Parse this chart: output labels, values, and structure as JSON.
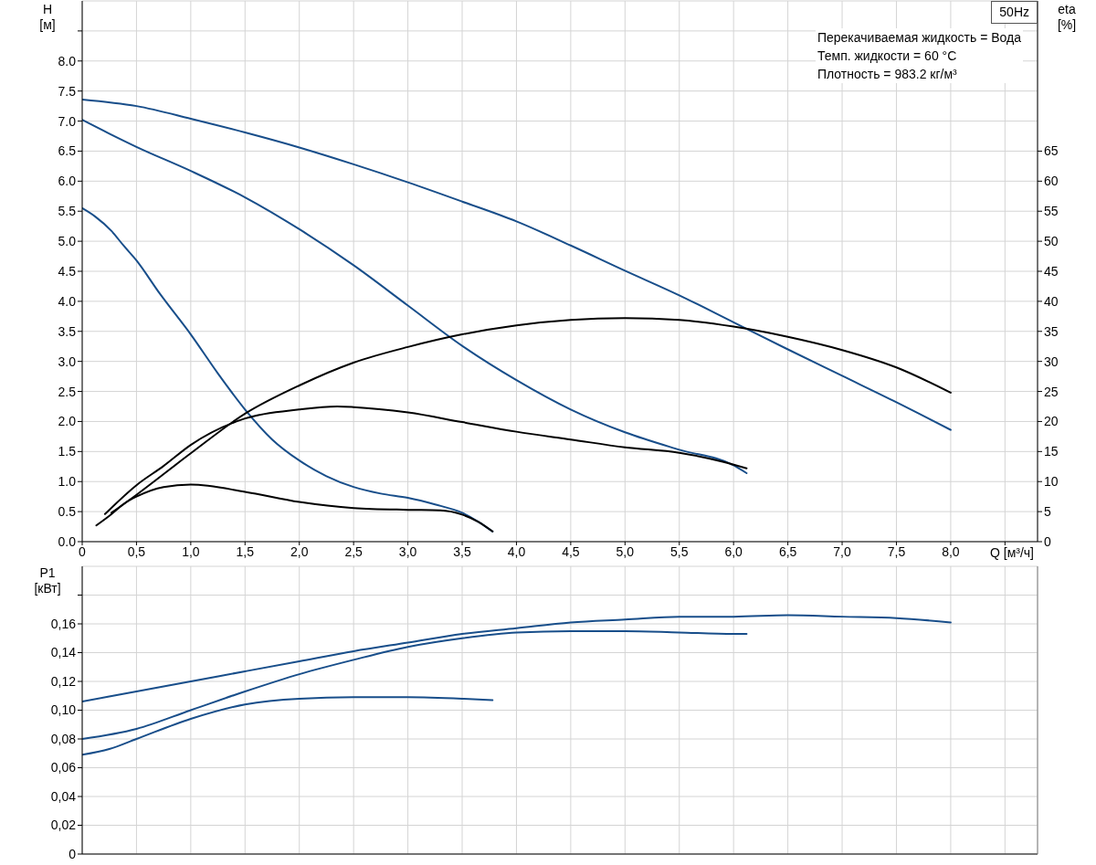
{
  "chart_data": [
    {
      "type": "line",
      "xlabel": "Q [м³/ч]",
      "ylabel": "H\n[м]",
      "y2label": "eta\n[%]",
      "annotations": [
        "50Hz",
        "Перекачиваемая жидкость = Вода",
        "Темп. жидкости = 60 °C",
        "Плотность = 983.2 кг/м³"
      ],
      "xlim": [
        0,
        8.8
      ],
      "xticks": [
        0,
        {
          "value": 0.5,
          "label": "0,5"
        },
        {
          "value": 1,
          "label": "1,0"
        },
        {
          "value": 1.5,
          "label": "1,5"
        },
        {
          "value": 2,
          "label": "2,0"
        },
        {
          "value": 2.5,
          "label": "2,5"
        },
        {
          "value": 3,
          "label": "3,0"
        },
        {
          "value": 3.5,
          "label": "3,5"
        },
        {
          "value": 4,
          "label": "4,0"
        },
        {
          "value": 4.5,
          "label": "4,5"
        },
        {
          "value": 5,
          "label": "5,0"
        },
        {
          "value": 5.5,
          "label": "5,5"
        },
        {
          "value": 6,
          "label": "6,0"
        },
        {
          "value": 6.5,
          "label": "6,5"
        },
        {
          "value": 7,
          "label": "7,0"
        },
        {
          "value": 7.5,
          "label": "7,5"
        },
        {
          "value": 8,
          "label": "8,0"
        },
        {
          "value": 8.5,
          "label": null
        }
      ],
      "ylim": [
        0,
        9
      ],
      "yticks": [
        {
          "value": 0,
          "label": "0.0"
        },
        {
          "value": 0.5,
          "label": "0.5"
        },
        {
          "value": 1,
          "label": "1.0"
        },
        {
          "value": 1.5,
          "label": "1.5"
        },
        {
          "value": 2,
          "label": "2.0"
        },
        {
          "value": 2.5,
          "label": "2.5"
        },
        {
          "value": 3,
          "label": "3.0"
        },
        {
          "value": 3.5,
          "label": "3.5"
        },
        {
          "value": 4,
          "label": "4.0"
        },
        {
          "value": 4.5,
          "label": "4.5"
        },
        {
          "value": 5,
          "label": "5.0"
        },
        {
          "value": 5.5,
          "label": "5.5"
        },
        {
          "value": 6,
          "label": "6.0"
        },
        {
          "value": 6.5,
          "label": "6.5"
        },
        {
          "value": 7,
          "label": "7.0"
        },
        {
          "value": 7.5,
          "label": "7.5"
        },
        {
          "value": 8,
          "label": "8.0"
        },
        {
          "value": 8.5,
          "label": null
        }
      ],
      "y2lim": [
        0,
        90
      ],
      "y2ticks": [
        0,
        5,
        10,
        15,
        20,
        25,
        30,
        35,
        40,
        45,
        50,
        55,
        60,
        65
      ],
      "grid": true,
      "marker": "none",
      "series": [
        {
          "color": "#184e8a",
          "x": [
            0,
            0.5,
            1,
            1.5,
            2,
            2.5,
            3,
            3.5,
            4,
            4.5,
            5,
            5.5,
            6,
            6.5,
            7,
            7.5,
            8
          ],
          "values": [
            7.36,
            7.25,
            7.04,
            6.81,
            6.56,
            6.28,
            5.98,
            5.66,
            5.33,
            4.93,
            4.51,
            4.1,
            3.65,
            3.2,
            2.76,
            2.32,
            1.86
          ]
        },
        {
          "color": "#184e8a",
          "x": [
            0,
            0.25,
            0.5,
            1,
            1.5,
            2,
            2.5,
            3,
            3.5,
            4,
            4.5,
            5,
            5.5,
            6,
            6.12
          ],
          "values": [
            7.02,
            6.79,
            6.57,
            6.17,
            5.73,
            5.2,
            4.6,
            3.93,
            3.26,
            2.69,
            2.2,
            1.82,
            1.53,
            1.27,
            1.14
          ]
        },
        {
          "color": "#184e8a",
          "x": [
            0,
            0.12,
            0.27,
            0.38,
            0.5,
            0.71,
            1,
            1.25,
            1.5,
            1.75,
            2,
            2.25,
            2.5,
            2.75,
            3,
            3.25,
            3.5,
            3.65,
            3.78
          ],
          "values": [
            5.55,
            5.41,
            5.17,
            4.93,
            4.68,
            4.14,
            3.45,
            2.8,
            2.2,
            1.7,
            1.35,
            1.09,
            0.91,
            0.8,
            0.73,
            0.62,
            0.48,
            0.33,
            0.17
          ]
        },
        {
          "color": "#000000",
          "axis": "y2",
          "x": [
            0.27,
            0.5,
            1,
            1.5,
            2,
            2.5,
            3,
            3.5,
            4,
            4.5,
            5,
            5.5,
            6,
            6.5,
            7,
            7.5,
            8
          ],
          "values": [
            4.8,
            7.8,
            14.7,
            21.3,
            26.0,
            29.8,
            32.4,
            34.5,
            36.0,
            36.9,
            37.2,
            36.9,
            35.8,
            34.1,
            31.9,
            29.0,
            24.8
          ]
        },
        {
          "color": "#000000",
          "axis": "y2",
          "x": [
            0.21,
            0.5,
            0.75,
            1,
            1.5,
            2,
            2.35,
            2.5,
            3,
            3.5,
            4,
            4.5,
            5,
            5.5,
            5.9,
            6.12
          ],
          "values": [
            4.6,
            9.4,
            12.6,
            16.1,
            20.5,
            22.0,
            22.5,
            22.4,
            21.5,
            19.9,
            18.3,
            17.0,
            15.7,
            14.8,
            13.3,
            12.2
          ]
        },
        {
          "color": "#000000",
          "axis": "y2",
          "x": [
            0.13,
            0.25,
            0.4,
            0.5,
            0.75,
            1,
            1.5,
            2,
            2.5,
            3,
            3.3,
            3.5,
            3.65,
            3.78
          ],
          "values": [
            2.7,
            4.3,
            6.5,
            7.5,
            9.1,
            9.5,
            8.3,
            6.6,
            5.6,
            5.3,
            5.2,
            4.5,
            3.3,
            1.7
          ]
        }
      ]
    },
    {
      "type": "line",
      "ylabel": "P1\n[кВт]",
      "tick_labels": "y",
      "xlim": [
        0,
        8.8
      ],
      "xticks": [
        0,
        0.5,
        1,
        1.5,
        2,
        2.5,
        3,
        3.5,
        4,
        4.5,
        5,
        5.5,
        6,
        6.5,
        7,
        7.5,
        8,
        8.5
      ],
      "ylim": [
        0,
        0.2
      ],
      "yticks": [
        0,
        {
          "value": 0.02,
          "label": "0,02"
        },
        {
          "value": 0.04,
          "label": "0,04"
        },
        {
          "value": 0.06,
          "label": "0,06"
        },
        {
          "value": 0.08,
          "label": "0,08"
        },
        {
          "value": 0.1,
          "label": "0,10"
        },
        {
          "value": 0.12,
          "label": "0,12"
        },
        {
          "value": 0.14,
          "label": "0,14"
        },
        {
          "value": 0.16,
          "label": "0,16"
        },
        {
          "value": 0.18,
          "label": null
        }
      ],
      "grid": true,
      "marker": "none",
      "series": [
        {
          "color": "#184e8a",
          "x": [
            0,
            0.5,
            1,
            1.5,
            2,
            2.5,
            3,
            3.5,
            4,
            4.5,
            5,
            5.5,
            6,
            6.5,
            7,
            7.5,
            8
          ],
          "values": [
            0.106,
            0.113,
            0.12,
            0.127,
            0.134,
            0.141,
            0.147,
            0.153,
            0.157,
            0.161,
            0.163,
            0.165,
            0.165,
            0.166,
            0.165,
            0.164,
            0.161
          ]
        },
        {
          "color": "#184e8a",
          "x": [
            0,
            0.5,
            1,
            1.5,
            2,
            2.5,
            3,
            3.5,
            4,
            4.5,
            5,
            5.5,
            6,
            6.12
          ],
          "values": [
            0.08,
            0.087,
            0.1,
            0.113,
            0.125,
            0.135,
            0.144,
            0.15,
            0.154,
            0.155,
            0.155,
            0.154,
            0.153,
            0.153
          ]
        },
        {
          "color": "#184e8a",
          "x": [
            0,
            0.25,
            0.5,
            1,
            1.5,
            2,
            2.5,
            3,
            3.5,
            3.78
          ],
          "values": [
            0.069,
            0.073,
            0.08,
            0.094,
            0.104,
            0.108,
            0.109,
            0.109,
            0.108,
            0.107
          ]
        }
      ]
    }
  ]
}
